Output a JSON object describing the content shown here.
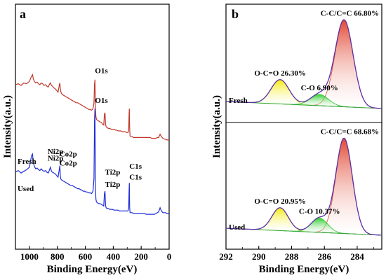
{
  "chart_data": [
    {
      "panel": "a",
      "type": "line",
      "xlabel": "Binding Energy(eV)",
      "ylabel": "Intensity(a.u.)",
      "xlim": [
        1100,
        0
      ],
      "xticks": [
        "1000",
        "800",
        "600",
        "400",
        "200",
        "0"
      ],
      "series": [
        {
          "name": "Fresh",
          "color": "#c0392b",
          "baseline": 1.0,
          "x": [
            1100,
            1080,
            1060,
            1040,
            1020,
            1000,
            985,
            978,
            972,
            965,
            955,
            945,
            935,
            925,
            915,
            905,
            895,
            885,
            875,
            865,
            858,
            850,
            842,
            835,
            825,
            815,
            805,
            795,
            785,
            782,
            779,
            776,
            772,
            765,
            755,
            745,
            735,
            725,
            715,
            705,
            695,
            685,
            675,
            665,
            655,
            645,
            635,
            625,
            615,
            605,
            595,
            585,
            575,
            565,
            555,
            545,
            538,
            534,
            531,
            528,
            524,
            520,
            515,
            505,
            495,
            485,
            475,
            468,
            463,
            459,
            455,
            451,
            445,
            435,
            425,
            415,
            405,
            395,
            385,
            375,
            365,
            355,
            345,
            335,
            325,
            315,
            305,
            295,
            290,
            287,
            285,
            283,
            280,
            275,
            265,
            255,
            245,
            235,
            225,
            215,
            205,
            195,
            185,
            175,
            165,
            155,
            145,
            135,
            125,
            115,
            105,
            95,
            85,
            75,
            65,
            55,
            45,
            35,
            25,
            15,
            5,
            0
          ],
          "y": [
            0.84,
            0.85,
            0.83,
            0.86,
            0.85,
            0.88,
            0.94,
            0.96,
            0.91,
            0.88,
            0.86,
            0.87,
            0.85,
            0.84,
            0.86,
            0.85,
            0.83,
            0.84,
            0.82,
            0.81,
            0.84,
            0.86,
            0.83,
            0.82,
            0.8,
            0.79,
            0.77,
            0.75,
            0.84,
            0.86,
            0.8,
            0.76,
            0.74,
            0.72,
            0.71,
            0.7,
            0.69,
            0.68,
            0.67,
            0.66,
            0.65,
            0.64,
            0.63,
            0.62,
            0.62,
            0.61,
            0.6,
            0.59,
            0.58,
            0.57,
            0.56,
            0.55,
            0.54,
            0.54,
            0.53,
            0.55,
            0.62,
            0.85,
            0.9,
            0.55,
            0.45,
            0.42,
            0.41,
            0.4,
            0.39,
            0.38,
            0.36,
            0.35,
            0.48,
            0.5,
            0.36,
            0.33,
            0.32,
            0.31,
            0.31,
            0.3,
            0.3,
            0.3,
            0.29,
            0.29,
            0.28,
            0.28,
            0.28,
            0.27,
            0.27,
            0.27,
            0.26,
            0.26,
            0.28,
            0.48,
            0.55,
            0.32,
            0.22,
            0.21,
            0.21,
            0.2,
            0.2,
            0.2,
            0.2,
            0.2,
            0.2,
            0.2,
            0.2,
            0.2,
            0.2,
            0.2,
            0.2,
            0.2,
            0.19,
            0.19,
            0.19,
            0.19,
            0.2,
            0.2,
            0.24,
            0.21,
            0.19,
            0.18,
            0.18,
            0.17,
            0.17,
            0.17
          ]
        },
        {
          "name": "Used",
          "color": "#1f2fd6",
          "baseline": 0.0,
          "x": [
            1100,
            1080,
            1060,
            1040,
            1020,
            1000,
            985,
            978,
            972,
            965,
            955,
            945,
            935,
            925,
            915,
            905,
            895,
            885,
            875,
            865,
            858,
            850,
            842,
            835,
            825,
            815,
            805,
            795,
            785,
            782,
            779,
            776,
            772,
            765,
            755,
            745,
            735,
            725,
            715,
            705,
            695,
            685,
            675,
            665,
            655,
            645,
            635,
            625,
            615,
            605,
            595,
            585,
            575,
            565,
            555,
            545,
            538,
            534,
            531,
            528,
            524,
            520,
            515,
            505,
            495,
            485,
            475,
            468,
            463,
            459,
            455,
            451,
            445,
            435,
            425,
            415,
            405,
            395,
            385,
            375,
            365,
            355,
            345,
            335,
            325,
            315,
            305,
            295,
            290,
            287,
            285,
            283,
            280,
            275,
            265,
            255,
            245,
            235,
            225,
            215,
            205,
            195,
            185,
            175,
            165,
            155,
            145,
            135,
            125,
            115,
            105,
            95,
            85,
            75,
            65,
            55,
            45,
            35,
            25,
            15,
            5,
            0
          ],
          "y": [
            0.78,
            0.8,
            0.77,
            0.79,
            0.81,
            0.84,
            0.98,
            1.0,
            0.9,
            0.85,
            0.82,
            0.83,
            0.81,
            0.8,
            0.82,
            0.8,
            0.79,
            0.8,
            0.78,
            0.77,
            0.8,
            0.84,
            0.79,
            0.78,
            0.77,
            0.76,
            0.74,
            0.72,
            0.82,
            0.86,
            0.74,
            0.7,
            0.69,
            0.68,
            0.67,
            0.66,
            0.65,
            0.64,
            0.63,
            0.62,
            0.62,
            0.61,
            0.6,
            0.59,
            0.58,
            0.58,
            0.57,
            0.56,
            0.55,
            0.55,
            0.54,
            0.54,
            0.53,
            0.53,
            0.52,
            0.55,
            0.7,
            1.4,
            1.55,
            0.6,
            0.45,
            0.42,
            0.41,
            0.4,
            0.4,
            0.39,
            0.38,
            0.37,
            0.52,
            0.55,
            0.38,
            0.35,
            0.34,
            0.34,
            0.33,
            0.33,
            0.33,
            0.32,
            0.32,
            0.32,
            0.32,
            0.31,
            0.31,
            0.31,
            0.31,
            0.31,
            0.31,
            0.31,
            0.34,
            0.55,
            0.65,
            0.36,
            0.29,
            0.29,
            0.29,
            0.28,
            0.28,
            0.28,
            0.28,
            0.28,
            0.28,
            0.28,
            0.28,
            0.28,
            0.27,
            0.27,
            0.27,
            0.27,
            0.27,
            0.27,
            0.27,
            0.28,
            0.29,
            0.3,
            0.35,
            0.31,
            0.29,
            0.29,
            0.29,
            0.28,
            0.28,
            0.28
          ]
        }
      ],
      "annotations": [
        {
          "text": "Fresh",
          "x": 1085,
          "y": 0.88
        },
        {
          "text": "Ni2p",
          "x": 870,
          "y": 1.0
        },
        {
          "text": "Co2p",
          "x": 785,
          "y": 0.97
        },
        {
          "text": "O1s",
          "x": 531,
          "y": 1.98
        },
        {
          "text": "Ti2p",
          "x": 459,
          "y": 0.75
        },
        {
          "text": "C1s",
          "x": 285,
          "y": 0.82
        },
        {
          "text": "Used",
          "x": 1085,
          "y": 0.55
        },
        {
          "text": "Ni2p",
          "x": 870,
          "y": 0.92
        },
        {
          "text": "Co2p",
          "x": 785,
          "y": 0.86
        },
        {
          "text": "O1s",
          "x": 531,
          "y": 1.62
        },
        {
          "text": "Ti2p",
          "x": 459,
          "y": 0.6
        },
        {
          "text": "C1s",
          "x": 285,
          "y": 0.69
        }
      ]
    },
    {
      "panel": "b",
      "type": "area",
      "xlabel": "Binding Energy(eV)",
      "ylabel": "Intensity(a.u.)",
      "xlim": [
        292,
        282.5
      ],
      "xticks": [
        "292",
        "290",
        "288",
        "286",
        "284"
      ],
      "spectra": [
        {
          "name": "Fresh",
          "baseline": 1.0,
          "peaks": [
            {
              "label": "C-C/C=C 66.80%",
              "center": 284.8,
              "height": 1.0,
              "width": 0.55,
              "color": "#d9472b"
            },
            {
              "label": "O-C=O 26.30%",
              "center": 288.7,
              "height": 0.28,
              "width": 0.55,
              "color": "#e8e000"
            },
            {
              "label": "C-O 6.90%",
              "center": 286.3,
              "height": 0.13,
              "width": 0.55,
              "color": "#27c227"
            }
          ]
        },
        {
          "name": "Used",
          "baseline": 0.0,
          "peaks": [
            {
              "label": "C-C/C=C 68.68%",
              "center": 284.8,
              "height": 1.0,
              "width": 0.5,
              "color": "#d9472b"
            },
            {
              "label": "O-C=O 20.95%",
              "center": 288.7,
              "height": 0.24,
              "width": 0.5,
              "color": "#e8e000"
            },
            {
              "label": "C-O 10.37%",
              "center": 286.3,
              "height": 0.15,
              "width": 0.5,
              "color": "#27c227"
            }
          ]
        }
      ]
    }
  ],
  "panel_labels": {
    "a": "a",
    "b": "b"
  },
  "text": {
    "a_xlabel": "Binding Energy(eV)",
    "a_ylabel": "Intensity(a.u.)",
    "b_xlabel": "Binding Energy(eV)",
    "b_ylabel": "Intensity(a.u.)",
    "fresh_label": "Fresh",
    "used_label": "Used"
  },
  "colors": {
    "envelope": "#5b2fa6",
    "fit_baseline": "#2aa83a",
    "axis": "#000000"
  }
}
